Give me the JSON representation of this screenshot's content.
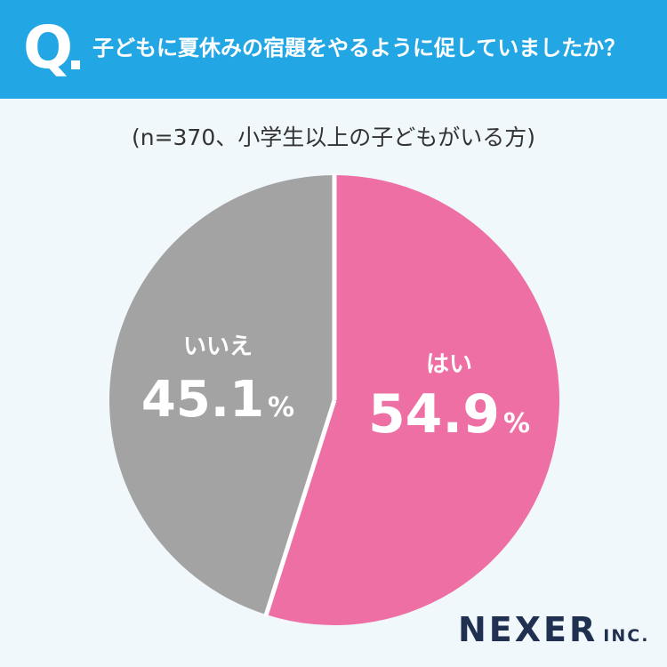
{
  "header": {
    "q_mark": "Q",
    "question": "子どもに夏休みの宿題をやるように促していましたか？"
  },
  "sample_note": "(n=370、小学生以上の子どもがいる方)",
  "chart_data": {
    "type": "pie",
    "start_angle_deg": 0,
    "direction": "clockwise",
    "slices": [
      {
        "label": "はい",
        "value": 54.9,
        "display": "54.9",
        "unit": "%",
        "color": "#ee6fa3"
      },
      {
        "label": "いいえ",
        "value": 45.1,
        "display": "45.1",
        "unit": "%",
        "color": "#a3a3a3"
      }
    ],
    "separator_color": "#ffffff"
  },
  "logo": {
    "main": "NEXER",
    "sub": "INC."
  }
}
